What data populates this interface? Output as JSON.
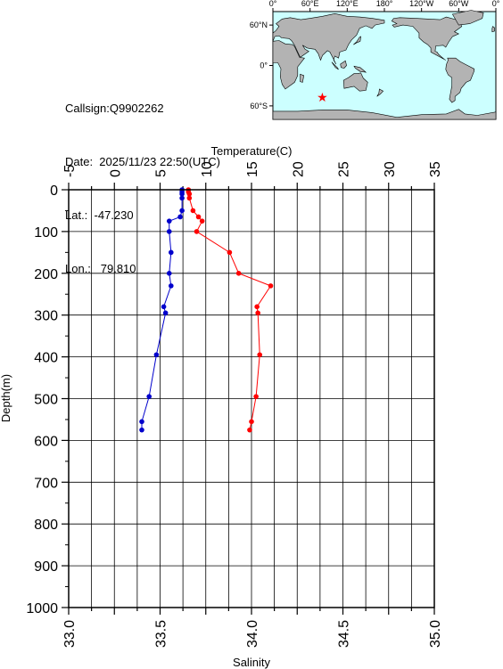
{
  "info": {
    "callsign": "Callsign:Q9902262",
    "date": "Date:  2025/11/23 22:50(UTC)",
    "lat": "Lat.:  -47.230",
    "lon": "Lon.:   79.810"
  },
  "map": {
    "lon_labels": [
      "0°",
      "60°E",
      "120°E",
      "180°",
      "120°W",
      "60°W",
      "0°"
    ],
    "lat_labels": [
      "60°N",
      "0°",
      "60°S"
    ],
    "ocean_color": "#ccffff",
    "land_color": "#b3b3b3",
    "marker_color": "#ff0000",
    "marker": {
      "lat": -47.23,
      "lon": 79.81
    }
  },
  "chart_data": {
    "type": "line",
    "ylabel": "Depth(m)",
    "ylim": [
      1000,
      0
    ],
    "yticks": [
      "0",
      "100",
      "200",
      "300",
      "400",
      "500",
      "600",
      "700",
      "800",
      "900",
      "1000"
    ],
    "top_axis": {
      "label": "Temperature(C)",
      "range": [
        -5,
        35
      ],
      "ticks": [
        "-5",
        "0",
        "5",
        "10",
        "15",
        "20",
        "25",
        "30",
        "35"
      ]
    },
    "bottom_axis": {
      "label": "Salinity",
      "range": [
        33.0,
        35.0
      ],
      "ticks": [
        "33.0",
        "33.5",
        "34.0",
        "34.5",
        "35.0"
      ]
    },
    "grid": true,
    "series": [
      {
        "axis": "top",
        "color": "#ff0000",
        "points": [
          [
            8.1,
            0
          ],
          [
            8.1,
            5
          ],
          [
            8.2,
            10
          ],
          [
            8.2,
            20
          ],
          [
            8.6,
            50
          ],
          [
            9.2,
            65
          ],
          [
            9.6,
            75
          ],
          [
            9.0,
            100
          ],
          [
            12.6,
            150
          ],
          [
            13.6,
            200
          ],
          [
            17.1,
            230
          ],
          [
            15.6,
            280
          ],
          [
            15.7,
            295
          ],
          [
            15.9,
            395
          ],
          [
            15.5,
            495
          ],
          [
            15.0,
            555
          ],
          [
            14.8,
            575
          ]
        ]
      },
      {
        "axis": "bottom",
        "color": "#0000cc",
        "points": [
          [
            33.62,
            0
          ],
          [
            33.62,
            5
          ],
          [
            33.62,
            10
          ],
          [
            33.62,
            20
          ],
          [
            33.62,
            50
          ],
          [
            33.61,
            65
          ],
          [
            33.55,
            75
          ],
          [
            33.55,
            100
          ],
          [
            33.56,
            150
          ],
          [
            33.55,
            200
          ],
          [
            33.56,
            230
          ],
          [
            33.52,
            280
          ],
          [
            33.53,
            295
          ],
          [
            33.48,
            395
          ],
          [
            33.44,
            495
          ],
          [
            33.4,
            555
          ],
          [
            33.4,
            575
          ]
        ]
      }
    ]
  }
}
